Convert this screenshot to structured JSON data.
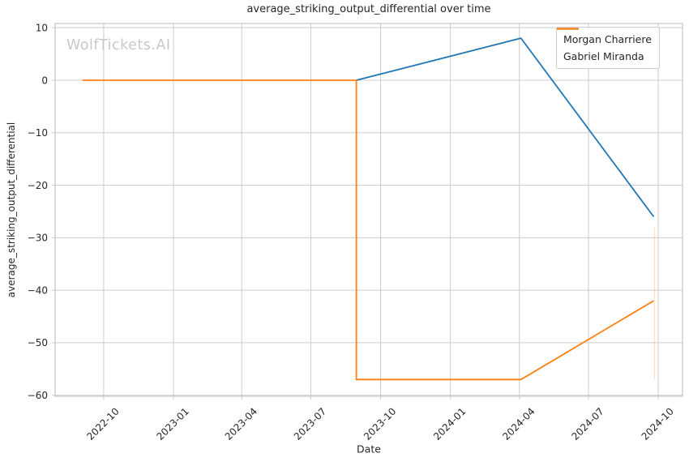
{
  "chart_data": {
    "type": "line",
    "title": "average_striking_output_differential over time",
    "xlabel": "Date",
    "ylabel": "average_striking_output_differential",
    "watermark": "WolfTickets.AI",
    "grid": true,
    "legend_position": "upper right",
    "xlim": [
      "2022-07-29",
      "2024-11-02"
    ],
    "ylim": [
      -60.2,
      10.8
    ],
    "x_ticks": [
      {
        "label": "2022-10",
        "date": "2022-10-01"
      },
      {
        "label": "2023-01",
        "date": "2023-01-01"
      },
      {
        "label": "2023-04",
        "date": "2023-04-01"
      },
      {
        "label": "2023-07",
        "date": "2023-07-01"
      },
      {
        "label": "2023-10",
        "date": "2023-10-01"
      },
      {
        "label": "2024-01",
        "date": "2024-01-01"
      },
      {
        "label": "2024-04",
        "date": "2024-04-01"
      },
      {
        "label": "2024-07",
        "date": "2024-07-01"
      },
      {
        "label": "2024-10",
        "date": "2024-10-01"
      }
    ],
    "y_ticks": [
      {
        "label": "10",
        "value": 10
      },
      {
        "label": "0",
        "value": 0
      },
      {
        "label": "−10",
        "value": -10
      },
      {
        "label": "−20",
        "value": -20
      },
      {
        "label": "−30",
        "value": -30
      },
      {
        "label": "−40",
        "value": -40
      },
      {
        "label": "−50",
        "value": -50
      },
      {
        "label": "−60",
        "value": -60
      }
    ],
    "series": [
      {
        "name": "Morgan Charriere",
        "color": "#1f77b4",
        "points": [
          {
            "date": "2023-08-30",
            "value": 0
          },
          {
            "date": "2024-04-03",
            "value": 8
          },
          {
            "date": "2024-09-25",
            "value": -26
          }
        ]
      },
      {
        "name": "Gabriel Miranda",
        "color": "#ff7f0e",
        "points": [
          {
            "date": "2022-09-03",
            "value": 0
          },
          {
            "date": "2023-08-30",
            "value": 0
          },
          {
            "date": "2023-08-30",
            "value": -57
          },
          {
            "date": "2024-04-03",
            "value": -57
          },
          {
            "date": "2024-09-25",
            "value": -42
          }
        ]
      }
    ],
    "annotations": [
      {
        "type": "vertical-segment",
        "date": "2024-09-25",
        "from": -28,
        "to": -57,
        "color": "#ff7f0e",
        "opacity": 0.22
      }
    ],
    "colors": {
      "grid": "#cccccc",
      "spine": "#c6c6c6",
      "text": "#262626",
      "watermark": "#c9c9c9",
      "background": "#ffffff"
    }
  }
}
